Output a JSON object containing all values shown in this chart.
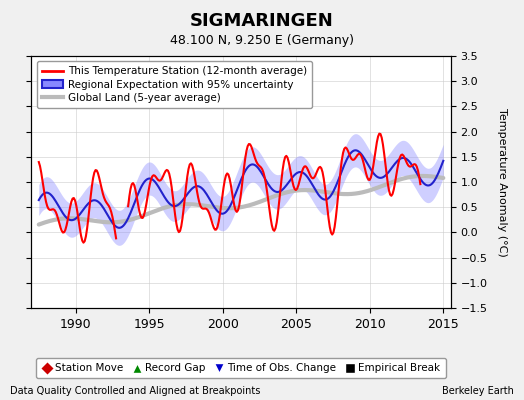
{
  "title": "SIGMARINGEN",
  "subtitle": "48.100 N, 9.250 E (Germany)",
  "ylabel": "Temperature Anomaly (°C)",
  "footer_left": "Data Quality Controlled and Aligned at Breakpoints",
  "footer_right": "Berkeley Earth",
  "xlim": [
    1987,
    2015.5
  ],
  "ylim": [
    -1.5,
    3.5
  ],
  "yticks": [
    -1.5,
    -1.0,
    -0.5,
    0,
    0.5,
    1.0,
    1.5,
    2.0,
    2.5,
    3.0,
    3.5
  ],
  "xticks": [
    1990,
    1995,
    2000,
    2005,
    2010,
    2015
  ],
  "background_color": "#f0f0f0",
  "plot_bg_color": "#ffffff",
  "legend_items": [
    {
      "label": "This Temperature Station (12-month average)",
      "color": "#ff0000",
      "lw": 2
    },
    {
      "label": "Regional Expectation with 95% uncertainty",
      "color": "#4444ff",
      "lw": 2
    },
    {
      "label": "Global Land (5-year average)",
      "color": "#bbbbbb",
      "lw": 3
    }
  ],
  "bottom_legend": [
    {
      "label": "Station Move",
      "color": "#cc0000",
      "marker": "D"
    },
    {
      "label": "Record Gap",
      "color": "#008800",
      "marker": "^"
    },
    {
      "label": "Time of Obs. Change",
      "color": "#0000cc",
      "marker": "v"
    },
    {
      "label": "Empirical Break",
      "color": "#000000",
      "marker": "s"
    }
  ],
  "reg_line_color": "#2222cc",
  "reg_band_color": "#8888ff",
  "reg_band_alpha": 0.4,
  "station_color": "#ff0000",
  "global_color": "#bbbbbb"
}
